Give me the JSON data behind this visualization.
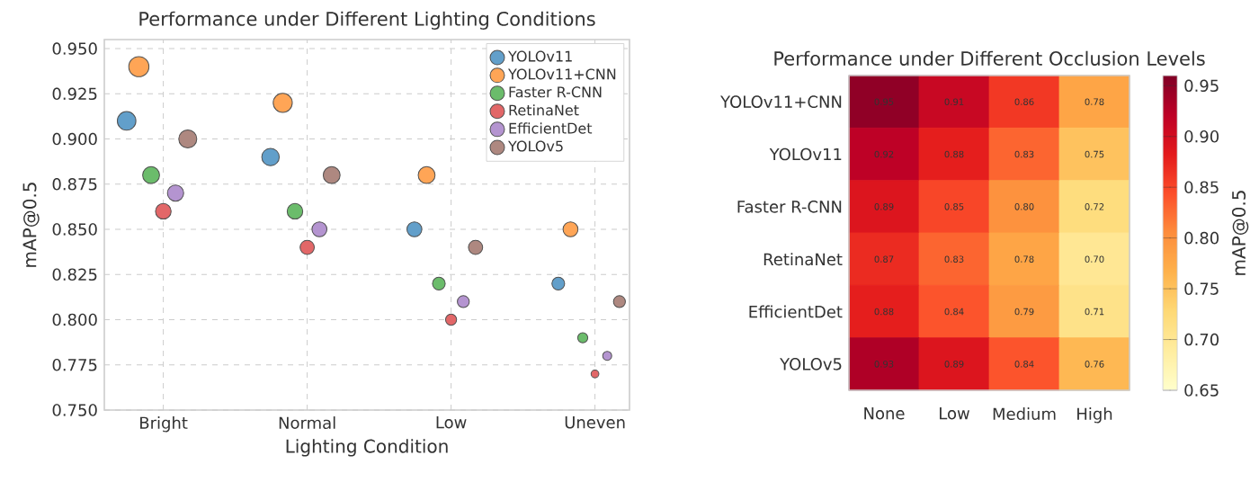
{
  "chart_data": [
    {
      "type": "bubble",
      "title": "Performance under Different Lighting Conditions",
      "xlabel": "Lighting Condition",
      "ylabel": "mAP@0.5",
      "categories": [
        "Bright",
        "Normal",
        "Low",
        "Uneven"
      ],
      "series": [
        {
          "name": "YOLOv11",
          "color": "#629fca",
          "values": [
            0.91,
            0.89,
            0.85,
            0.82
          ],
          "sizes": [
            0.85,
            0.75,
            0.55,
            0.4
          ]
        },
        {
          "name": "YOLOv11+CNN",
          "color": "#ffa556",
          "values": [
            0.94,
            0.92,
            0.88,
            0.85
          ],
          "sizes": [
            1,
            0.9,
            0.7,
            0.55
          ]
        },
        {
          "name": "Faster R-CNN",
          "color": "#6bbc6b",
          "values": [
            0.88,
            0.86,
            0.82,
            0.79
          ],
          "sizes": [
            0.7,
            0.6,
            0.4,
            0.25
          ]
        },
        {
          "name": "RetinaNet",
          "color": "#e26768",
          "values": [
            0.86,
            0.84,
            0.8,
            0.77
          ],
          "sizes": [
            0.6,
            0.5,
            0.3,
            0.15
          ]
        },
        {
          "name": "EfficientDet",
          "color": "#b494d0",
          "values": [
            0.87,
            0.85,
            0.81,
            0.78
          ],
          "sizes": [
            0.65,
            0.55,
            0.35,
            0.2
          ]
        },
        {
          "name": "YOLOv5",
          "color": "#ae8880",
          "values": [
            0.9,
            0.88,
            0.84,
            0.81
          ],
          "sizes": [
            0.8,
            0.7,
            0.5,
            0.35
          ]
        }
      ],
      "ylim": [
        0.75,
        0.955
      ],
      "yticks": [
        {
          "value": 0.75,
          "label": "0.750"
        },
        {
          "value": 0.775,
          "label": "0.775"
        },
        {
          "value": 0.8,
          "label": "0.800"
        },
        {
          "value": 0.825,
          "label": "0.825"
        },
        {
          "value": 0.85,
          "label": "0.850"
        },
        {
          "value": 0.875,
          "label": "0.875"
        },
        {
          "value": 0.9,
          "label": "0.900"
        },
        {
          "value": 0.925,
          "label": "0.925"
        },
        {
          "value": 0.95,
          "label": "0.950"
        }
      ],
      "grid": true,
      "legend": "top right"
    },
    {
      "type": "heatmap",
      "title": "Performance under Different Occlusion Levels",
      "clabel": "mAP@0.5",
      "categories": [
        "None",
        "Low",
        "Medium",
        "High"
      ],
      "y_categories": [
        "YOLOv11+CNN",
        "YOLOv11",
        "Faster R-CNN",
        "RetinaNet",
        "EfficientDet",
        "YOLOv5"
      ],
      "cells": [
        [
          0.95,
          0.91,
          0.86,
          0.78
        ],
        [
          0.92,
          0.88,
          0.83,
          0.75
        ],
        [
          0.89,
          0.85,
          0.8,
          0.72
        ],
        [
          0.87,
          0.83,
          0.78,
          0.7
        ],
        [
          0.88,
          0.84,
          0.79,
          0.71
        ],
        [
          0.93,
          0.89,
          0.84,
          0.76
        ]
      ],
      "cell_labels": [
        [
          "0.95",
          "0.91",
          "0.86",
          "0.78"
        ],
        [
          "0.92",
          "0.88",
          "0.83",
          "0.75"
        ],
        [
          "0.89",
          "0.85",
          "0.80",
          "0.72"
        ],
        [
          "0.87",
          "0.83",
          "0.78",
          "0.70"
        ],
        [
          "0.88",
          "0.84",
          "0.79",
          "0.71"
        ],
        [
          "0.93",
          "0.89",
          "0.84",
          "0.76"
        ]
      ],
      "clim": [
        0.65,
        0.96
      ],
      "cticks": [
        {
          "value": 0.65,
          "label": "0.65"
        },
        {
          "value": 0.7,
          "label": "0.70"
        },
        {
          "value": 0.75,
          "label": "0.75"
        },
        {
          "value": 0.8,
          "label": "0.80"
        },
        {
          "value": 0.85,
          "label": "0.85"
        },
        {
          "value": 0.9,
          "label": "0.90"
        },
        {
          "value": 0.95,
          "label": "0.95"
        }
      ]
    }
  ]
}
